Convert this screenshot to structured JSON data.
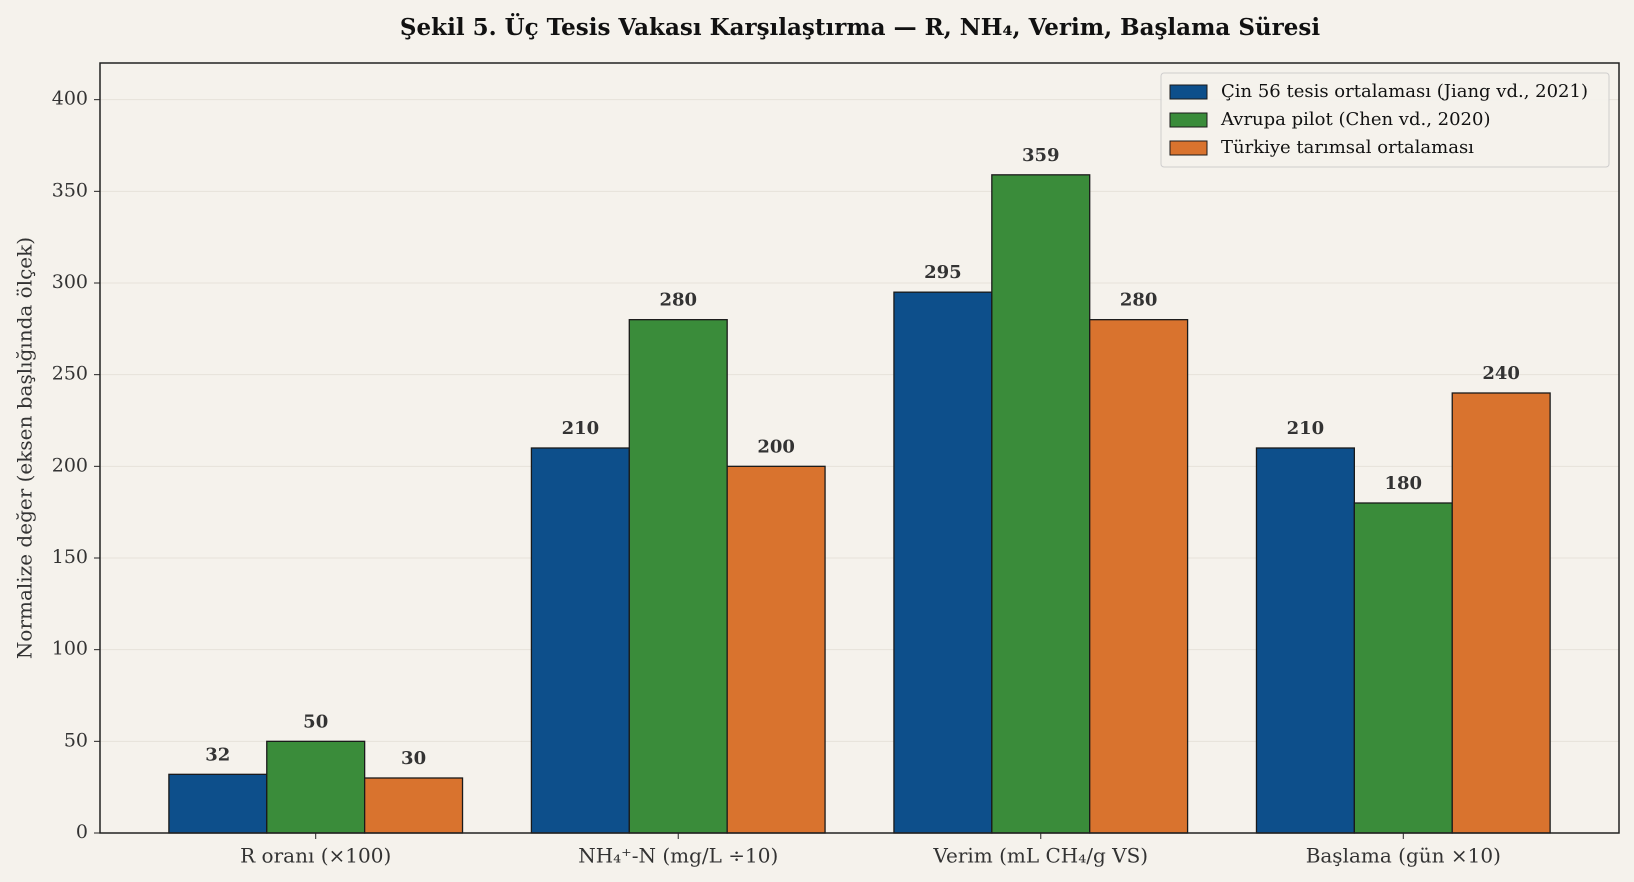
{
  "chart_data": {
    "type": "bar",
    "title": "Şekil 5. Üç Tesis Vakası Karşılaştırma — R, NH₄, Verim, Başlama Süresi",
    "y_label": "Normalize değer (eksen başlığında ölçek)",
    "categories": [
      "R oranı (×100)",
      "NH₄⁺-N (mg/L ÷10)",
      "Verim (mL CH₄/g VS)",
      "Başlama (gün ×10)"
    ],
    "series": [
      {
        "name": "Çin 56 tesis ortalaması (Jiang vd., 2021)",
        "color": "#0d4f8b",
        "values": [
          32,
          210,
          295,
          210
        ]
      },
      {
        "name": "Avrupa pilot (Chen vd., 2020)",
        "color": "#3a8c3a",
        "values": [
          50,
          280,
          359,
          180
        ]
      },
      {
        "name": "Türkiye tarımsal ortalaması",
        "color": "#d9732e",
        "values": [
          30,
          200,
          280,
          240
        ]
      }
    ],
    "ylim": [
      0,
      420
    ],
    "yticks": [
      0,
      50,
      100,
      150,
      200,
      250,
      300,
      350,
      400
    ],
    "grid": true,
    "legend": "upper right"
  }
}
